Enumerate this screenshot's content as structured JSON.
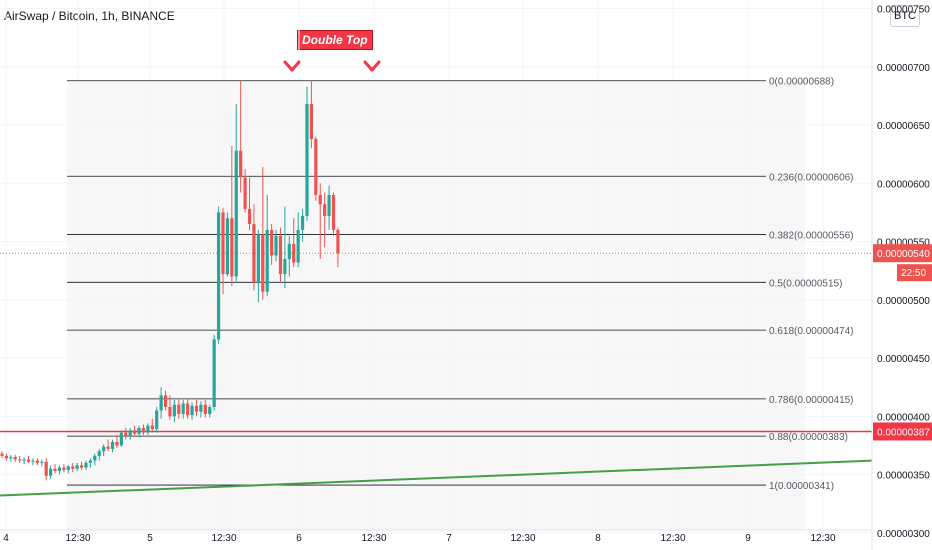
{
  "header": {
    "title": "AirSwap / Bitcoin, 1h, BINANCE",
    "currency_badge": "BTC"
  },
  "annotation": {
    "pattern_label": "Double Top"
  },
  "price_labels": {
    "last_price": "0.00000540",
    "countdown": "22:50",
    "support_price": "0.00000387"
  },
  "colors": {
    "up": "#26a69a",
    "down": "#ef5350",
    "accent_red": "#f23645",
    "trendline": "#43a047",
    "fib": "#131722"
  },
  "chart_data": {
    "type": "candlestick",
    "symbol": "AirSwap / Bitcoin",
    "timeframe": "1h",
    "exchange": "BINANCE",
    "ylim": [
      2.93e-06,
      7.53e-06
    ],
    "y_ticks": [
      "0.00000300",
      "0.00000350",
      "0.00000400",
      "0.00000450",
      "0.00000500",
      "0.00000550",
      "0.00000600",
      "0.00000650",
      "0.00000700",
      "0.00000750"
    ],
    "x_tick_labels": [
      "4",
      "12:30",
      "5",
      "12:30",
      "6",
      "12:30",
      "7",
      "12:30",
      "8",
      "12:30",
      "9",
      "12:30"
    ],
    "fib_levels": [
      {
        "ratio": "0",
        "price": 6.88e-06,
        "label": "0(0.00000688)"
      },
      {
        "ratio": "0.236",
        "price": 6.06e-06,
        "label": "0.236(0.00000606)"
      },
      {
        "ratio": "0.382",
        "price": 5.56e-06,
        "label": "0.382(0.00000556)"
      },
      {
        "ratio": "0.5",
        "price": 5.15e-06,
        "label": "0.5(0.00000515)"
      },
      {
        "ratio": "0.618",
        "price": 4.74e-06,
        "label": "0.618(0.00000474)"
      },
      {
        "ratio": "0.786",
        "price": 4.15e-06,
        "label": "0.786(0.00000415)"
      },
      {
        "ratio": "0.88",
        "price": 3.83e-06,
        "label": "0.88(0.00000383)"
      },
      {
        "ratio": "1",
        "price": 3.41e-06,
        "label": "1(0.00000341)"
      }
    ],
    "support_line": 3.87e-06,
    "last_price": 5.4e-06,
    "trendline": {
      "start": 3.32e-06,
      "end": 3.62e-06
    },
    "candles": [
      {
        "o": 3.68e-06,
        "h": 3.7e-06,
        "l": 3.64e-06,
        "c": 3.66e-06
      },
      {
        "o": 3.66e-06,
        "h": 3.68e-06,
        "l": 3.62e-06,
        "c": 3.64e-06
      },
      {
        "o": 3.64e-06,
        "h": 3.67e-06,
        "l": 3.61e-06,
        "c": 3.65e-06
      },
      {
        "o": 3.65e-06,
        "h": 3.67e-06,
        "l": 3.61e-06,
        "c": 3.63e-06
      },
      {
        "o": 3.63e-06,
        "h": 3.66e-06,
        "l": 3.6e-06,
        "c": 3.62e-06
      },
      {
        "o": 3.62e-06,
        "h": 3.65e-06,
        "l": 3.59e-06,
        "c": 3.63e-06
      },
      {
        "o": 3.63e-06,
        "h": 3.66e-06,
        "l": 3.6e-06,
        "c": 3.61e-06
      },
      {
        "o": 3.61e-06,
        "h": 3.64e-06,
        "l": 3.58e-06,
        "c": 3.62e-06
      },
      {
        "o": 3.62e-06,
        "h": 3.64e-06,
        "l": 3.58e-06,
        "c": 3.6e-06
      },
      {
        "o": 3.6e-06,
        "h": 3.63e-06,
        "l": 3.57e-06,
        "c": 3.61e-06
      },
      {
        "o": 3.61e-06,
        "h": 3.64e-06,
        "l": 3.45e-06,
        "c": 3.49e-06
      },
      {
        "o": 3.49e-06,
        "h": 3.58e-06,
        "l": 3.46e-06,
        "c": 3.55e-06
      },
      {
        "o": 3.55e-06,
        "h": 3.59e-06,
        "l": 3.51e-06,
        "c": 3.53e-06
      },
      {
        "o": 3.53e-06,
        "h": 3.58e-06,
        "l": 3.5e-06,
        "c": 3.56e-06
      },
      {
        "o": 3.56e-06,
        "h": 3.59e-06,
        "l": 3.52e-06,
        "c": 3.54e-06
      },
      {
        "o": 3.54e-06,
        "h": 3.58e-06,
        "l": 3.51e-06,
        "c": 3.57e-06
      },
      {
        "o": 3.57e-06,
        "h": 3.6e-06,
        "l": 3.52e-06,
        "c": 3.55e-06
      },
      {
        "o": 3.55e-06,
        "h": 3.6e-06,
        "l": 3.53e-06,
        "c": 3.58e-06
      },
      {
        "o": 3.58e-06,
        "h": 3.61e-06,
        "l": 3.54e-06,
        "c": 3.56e-06
      },
      {
        "o": 3.56e-06,
        "h": 3.62e-06,
        "l": 3.54e-06,
        "c": 3.6e-06
      },
      {
        "o": 3.6e-06,
        "h": 3.64e-06,
        "l": 3.56e-06,
        "c": 3.62e-06
      },
      {
        "o": 3.62e-06,
        "h": 3.68e-06,
        "l": 3.58e-06,
        "c": 3.66e-06
      },
      {
        "o": 3.66e-06,
        "h": 3.72e-06,
        "l": 3.62e-06,
        "c": 3.7e-06
      },
      {
        "o": 3.7e-06,
        "h": 3.76e-06,
        "l": 3.66e-06,
        "c": 3.74e-06
      },
      {
        "o": 3.74e-06,
        "h": 3.8e-06,
        "l": 3.7e-06,
        "c": 3.72e-06
      },
      {
        "o": 3.72e-06,
        "h": 3.8e-06,
        "l": 3.69e-06,
        "c": 3.78e-06
      },
      {
        "o": 3.78e-06,
        "h": 3.84e-06,
        "l": 3.73e-06,
        "c": 3.75e-06
      },
      {
        "o": 3.75e-06,
        "h": 3.88e-06,
        "l": 3.74e-06,
        "c": 3.86e-06
      },
      {
        "o": 3.86e-06,
        "h": 3.9e-06,
        "l": 3.8e-06,
        "c": 3.83e-06
      },
      {
        "o": 3.83e-06,
        "h": 3.9e-06,
        "l": 3.8e-06,
        "c": 3.88e-06
      },
      {
        "o": 3.88e-06,
        "h": 3.92e-06,
        "l": 3.83e-06,
        "c": 3.85e-06
      },
      {
        "o": 3.85e-06,
        "h": 3.92e-06,
        "l": 3.82e-06,
        "c": 3.9e-06
      },
      {
        "o": 3.9e-06,
        "h": 3.93e-06,
        "l": 3.84e-06,
        "c": 3.86e-06
      },
      {
        "o": 3.86e-06,
        "h": 3.94e-06,
        "l": 3.84e-06,
        "c": 3.92e-06
      },
      {
        "o": 3.92e-06,
        "h": 3.98e-06,
        "l": 3.86e-06,
        "c": 3.89e-06
      },
      {
        "o": 3.89e-06,
        "h": 4.08e-06,
        "l": 3.86e-06,
        "c": 4.05e-06
      },
      {
        "o": 4.05e-06,
        "h": 4.25e-06,
        "l": 3.98e-06,
        "c": 4.18e-06
      },
      {
        "o": 4.18e-06,
        "h": 4.22e-06,
        "l": 4.05e-06,
        "c": 4.08e-06
      },
      {
        "o": 4.08e-06,
        "h": 4.18e-06,
        "l": 3.97e-06,
        "c": 4e-06
      },
      {
        "o": 4e-06,
        "h": 4.14e-06,
        "l": 3.95e-06,
        "c": 4.1e-06
      },
      {
        "o": 4.1e-06,
        "h": 4.15e-06,
        "l": 3.98e-06,
        "c": 4.02e-06
      },
      {
        "o": 4.02e-06,
        "h": 4.14e-06,
        "l": 3.98e-06,
        "c": 4.11e-06
      },
      {
        "o": 4.11e-06,
        "h": 4.15e-06,
        "l": 3.98e-06,
        "c": 4.01e-06
      },
      {
        "o": 4.01e-06,
        "h": 4.12e-06,
        "l": 3.97e-06,
        "c": 4.09e-06
      },
      {
        "o": 4.09e-06,
        "h": 4.14e-06,
        "l": 4e-06,
        "c": 4.04e-06
      },
      {
        "o": 4.04e-06,
        "h": 4.13e-06,
        "l": 3.99e-06,
        "c": 4.1e-06
      },
      {
        "o": 4.1e-06,
        "h": 4.14e-06,
        "l": 3.99e-06,
        "c": 4.02e-06
      },
      {
        "o": 4.02e-06,
        "h": 4.1e-06,
        "l": 3.99e-06,
        "c": 4.08e-06
      },
      {
        "o": 4.08e-06,
        "h": 4.7e-06,
        "l": 4.05e-06,
        "c": 4.66e-06
      },
      {
        "o": 4.66e-06,
        "h": 5.8e-06,
        "l": 4.62e-06,
        "c": 5.75e-06
      },
      {
        "o": 5.75e-06,
        "h": 5.79e-06,
        "l": 5.05e-06,
        "c": 5.22e-06
      },
      {
        "o": 5.22e-06,
        "h": 5.75e-06,
        "l": 5.2e-06,
        "c": 5.7e-06
      },
      {
        "o": 5.7e-06,
        "h": 6.32e-06,
        "l": 5.12e-06,
        "c": 5.2e-06
      },
      {
        "o": 5.2e-06,
        "h": 6.68e-06,
        "l": 5.15e-06,
        "c": 6.28e-06
      },
      {
        "o": 6.28e-06,
        "h": 6.88e-06,
        "l": 5.92e-06,
        "c": 6.05e-06
      },
      {
        "o": 6.05e-06,
        "h": 6.12e-06,
        "l": 5.75e-06,
        "c": 5.78e-06
      },
      {
        "o": 5.78e-06,
        "h": 6.05e-06,
        "l": 5.6e-06,
        "c": 5.65e-06
      },
      {
        "o": 5.65e-06,
        "h": 5.82e-06,
        "l": 5.08e-06,
        "c": 5.15e-06
      },
      {
        "o": 5.15e-06,
        "h": 5.6e-06,
        "l": 4.98e-06,
        "c": 5.56e-06
      },
      {
        "o": 5.56e-06,
        "h": 6.14e-06,
        "l": 5e-06,
        "c": 5.07e-06
      },
      {
        "o": 5.07e-06,
        "h": 5.9e-06,
        "l": 5.03e-06,
        "c": 5.6e-06
      },
      {
        "o": 5.6e-06,
        "h": 5.65e-06,
        "l": 5.3e-06,
        "c": 5.38e-06
      },
      {
        "o": 5.38e-06,
        "h": 5.6e-06,
        "l": 5.33e-06,
        "c": 5.55e-06
      },
      {
        "o": 5.55e-06,
        "h": 5.62e-06,
        "l": 5.15e-06,
        "c": 5.22e-06
      },
      {
        "o": 5.22e-06,
        "h": 5.8e-06,
        "l": 5.1e-06,
        "c": 5.35e-06
      },
      {
        "o": 5.35e-06,
        "h": 5.55e-06,
        "l": 5.2e-06,
        "c": 5.48e-06
      },
      {
        "o": 5.48e-06,
        "h": 5.7e-06,
        "l": 5.28e-06,
        "c": 5.32e-06
      },
      {
        "o": 5.32e-06,
        "h": 5.75e-06,
        "l": 5.28e-06,
        "c": 5.6e-06
      },
      {
        "o": 5.6e-06,
        "h": 5.78e-06,
        "l": 5.5e-06,
        "c": 5.72e-06
      },
      {
        "o": 5.72e-06,
        "h": 6.83e-06,
        "l": 5.68e-06,
        "c": 6.68e-06
      },
      {
        "o": 6.68e-06,
        "h": 6.88e-06,
        "l": 6.3e-06,
        "c": 6.38e-06
      },
      {
        "o": 6.38e-06,
        "h": 6.4e-06,
        "l": 5.85e-06,
        "c": 5.9e-06
      },
      {
        "o": 5.9e-06,
        "h": 6e-06,
        "l": 5.35e-06,
        "c": 5.82e-06
      },
      {
        "o": 5.82e-06,
        "h": 5.92e-06,
        "l": 5.45e-06,
        "c": 5.72e-06
      },
      {
        "o": 5.72e-06,
        "h": 5.98e-06,
        "l": 5.6e-06,
        "c": 5.9e-06
      },
      {
        "o": 5.9e-06,
        "h": 5.92e-06,
        "l": 5.55e-06,
        "c": 5.6e-06
      },
      {
        "o": 5.6e-06,
        "h": 5.62e-06,
        "l": 5.28e-06,
        "c": 5.4e-06
      }
    ]
  }
}
